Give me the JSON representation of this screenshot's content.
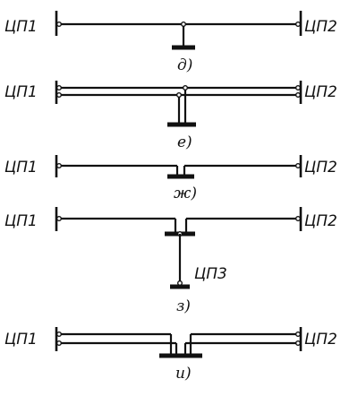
{
  "labels": {
    "cp1": "ЦП1",
    "cp2": "ЦП2",
    "cp3": "ЦП3"
  },
  "variants": [
    {
      "id": "d",
      "caption": "д)",
      "lines": 1,
      "tap": "single"
    },
    {
      "id": "e",
      "caption": "е)",
      "lines": 2,
      "tap": "double"
    },
    {
      "id": "zh",
      "caption": "ж)",
      "lines": 1,
      "tap": "loop-in"
    },
    {
      "id": "z",
      "caption": "з)",
      "lines": 1,
      "tap": "branch-to-third-center"
    },
    {
      "id": "i",
      "caption": "и)",
      "lines": 2,
      "tap": "double-loop-in"
    }
  ],
  "colors": {
    "line": "#111111",
    "background": "#ffffff"
  }
}
